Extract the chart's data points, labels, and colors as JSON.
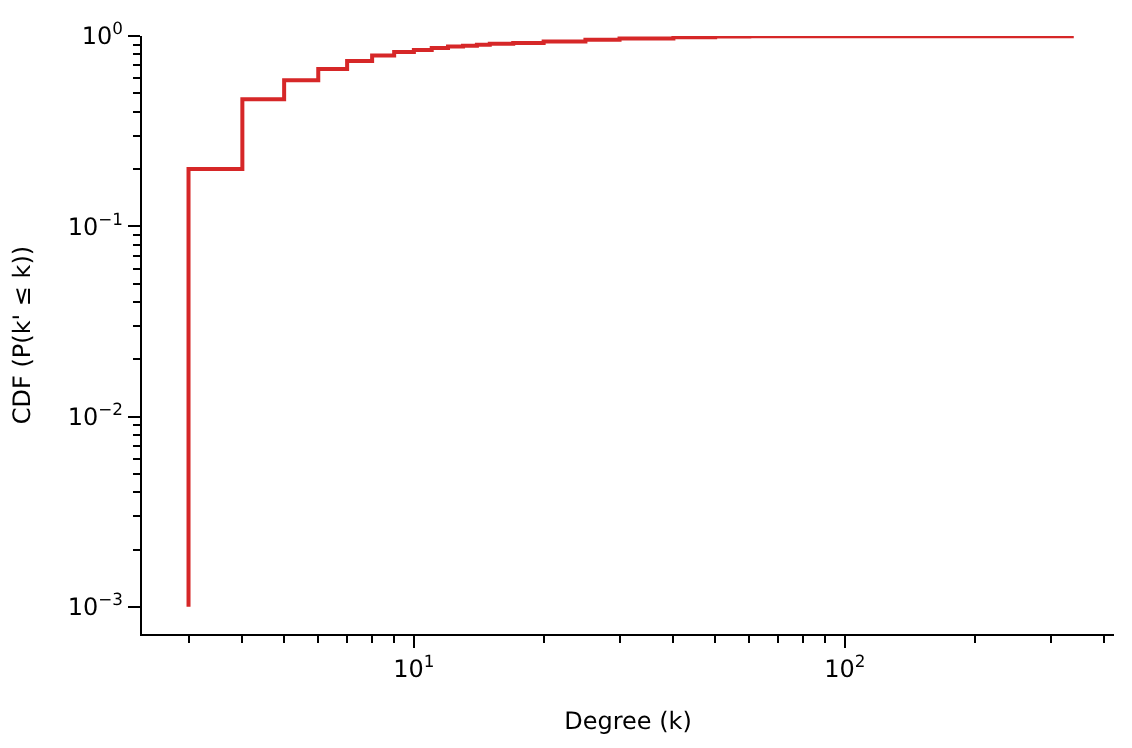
{
  "chart_data": {
    "type": "step",
    "xlabel": "Degree (k)",
    "ylabel": "CDF (P(k' ≤ k))",
    "log": "xy",
    "grid": false,
    "marker": "none",
    "x": [
      3,
      3,
      4,
      5,
      6,
      7,
      8,
      9,
      10,
      11,
      12,
      13,
      14,
      15,
      17,
      20,
      25,
      30,
      40,
      50,
      60,
      336
    ],
    "series": [
      {
        "color": "#d62728",
        "values": [
          0.001,
          0.2,
          0.465,
          0.585,
          0.67,
          0.74,
          0.79,
          0.825,
          0.845,
          0.865,
          0.88,
          0.89,
          0.9,
          0.91,
          0.92,
          0.935,
          0.955,
          0.97,
          0.985,
          0.993,
          0.998,
          1.0
        ]
      }
    ],
    "xlim": [
      2.34,
      421
    ],
    "ylim": [
      0.00072,
      1
    ],
    "xticks": [
      {
        "value": 3,
        "label": null
      },
      {
        "value": 4,
        "label": null
      },
      {
        "value": 5,
        "label": null
      },
      {
        "value": 6,
        "label": null
      },
      {
        "value": 7,
        "label": null
      },
      {
        "value": 8,
        "label": null
      },
      {
        "value": 9,
        "label": null
      },
      {
        "value": 10,
        "label": "10$^{1}$"
      },
      {
        "value": 20,
        "label": null
      },
      {
        "value": 30,
        "label": null
      },
      {
        "value": 40,
        "label": null
      },
      {
        "value": 50,
        "label": null
      },
      {
        "value": 60,
        "label": null
      },
      {
        "value": 70,
        "label": null
      },
      {
        "value": 80,
        "label": null
      },
      {
        "value": 90,
        "label": null
      },
      {
        "value": 100,
        "label": "10$^{2}$"
      },
      {
        "value": 200,
        "label": null
      },
      {
        "value": 300,
        "label": null
      },
      {
        "value": 400,
        "label": null
      }
    ],
    "yticks": [
      {
        "value": 0.001,
        "label": "10$^{−3}$"
      },
      {
        "value": 0.002,
        "label": null
      },
      {
        "value": 0.003,
        "label": null
      },
      {
        "value": 0.004,
        "label": null
      },
      {
        "value": 0.005,
        "label": null
      },
      {
        "value": 0.006,
        "label": null
      },
      {
        "value": 0.007,
        "label": null
      },
      {
        "value": 0.008,
        "label": null
      },
      {
        "value": 0.009,
        "label": null
      },
      {
        "value": 0.01,
        "label": "10$^{−2}$"
      },
      {
        "value": 0.02,
        "label": null
      },
      {
        "value": 0.03,
        "label": null
      },
      {
        "value": 0.04,
        "label": null
      },
      {
        "value": 0.05,
        "label": null
      },
      {
        "value": 0.06,
        "label": null
      },
      {
        "value": 0.07,
        "label": null
      },
      {
        "value": 0.08,
        "label": null
      },
      {
        "value": 0.09,
        "label": null
      },
      {
        "value": 0.1,
        "label": "10$^{−1}$"
      },
      {
        "value": 0.2,
        "label": null
      },
      {
        "value": 0.3,
        "label": null
      },
      {
        "value": 0.4,
        "label": null
      },
      {
        "value": 0.5,
        "label": null
      },
      {
        "value": 0.6,
        "label": null
      },
      {
        "value": 0.7,
        "label": null
      },
      {
        "value": 0.8,
        "label": null
      },
      {
        "value": 0.9,
        "label": null
      },
      {
        "value": 1,
        "label": "10$^{0}$"
      }
    ]
  }
}
